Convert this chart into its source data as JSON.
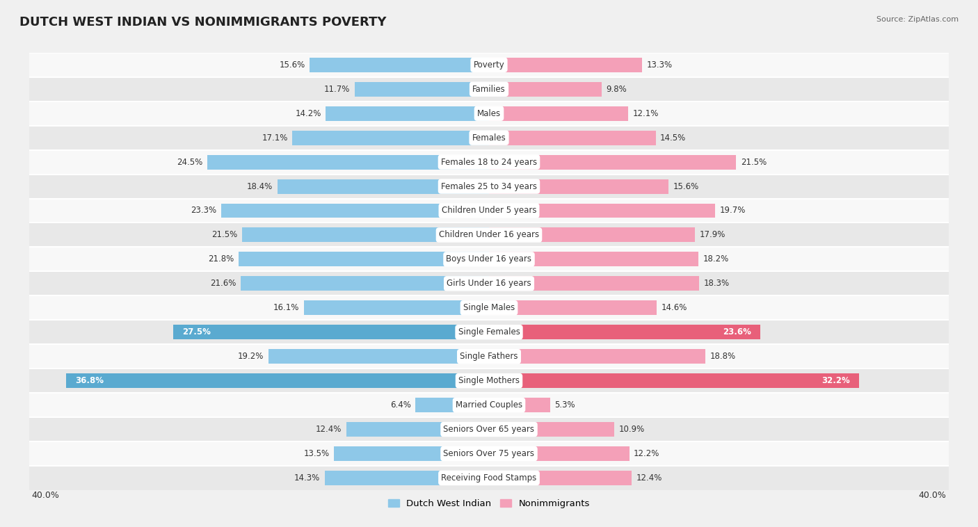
{
  "title": "DUTCH WEST INDIAN VS NONIMMIGRANTS POVERTY",
  "source": "Source: ZipAtlas.com",
  "categories": [
    "Poverty",
    "Families",
    "Males",
    "Females",
    "Females 18 to 24 years",
    "Females 25 to 34 years",
    "Children Under 5 years",
    "Children Under 16 years",
    "Boys Under 16 years",
    "Girls Under 16 years",
    "Single Males",
    "Single Females",
    "Single Fathers",
    "Single Mothers",
    "Married Couples",
    "Seniors Over 65 years",
    "Seniors Over 75 years",
    "Receiving Food Stamps"
  ],
  "dutch_values": [
    15.6,
    11.7,
    14.2,
    17.1,
    24.5,
    18.4,
    23.3,
    21.5,
    21.8,
    21.6,
    16.1,
    27.5,
    19.2,
    36.8,
    6.4,
    12.4,
    13.5,
    14.3
  ],
  "nonimm_values": [
    13.3,
    9.8,
    12.1,
    14.5,
    21.5,
    15.6,
    19.7,
    17.9,
    18.2,
    18.3,
    14.6,
    23.6,
    18.8,
    32.2,
    5.3,
    10.9,
    12.2,
    12.4
  ],
  "dutch_color": "#8ec8e8",
  "nonimm_color": "#f4a0b8",
  "dutch_bold_color": "#5aaad0",
  "nonimm_bold_color": "#e8607a",
  "bg_color": "#f0f0f0",
  "row_light": "#f8f8f8",
  "row_dark": "#e8e8e8",
  "xlim": 40.0,
  "label_fontsize": 8.5,
  "value_fontsize": 8.5,
  "title_fontsize": 13,
  "bar_height": 0.6,
  "bold_dutch_indices": [
    11,
    13
  ],
  "bold_nonimm_indices": [
    11,
    13
  ]
}
